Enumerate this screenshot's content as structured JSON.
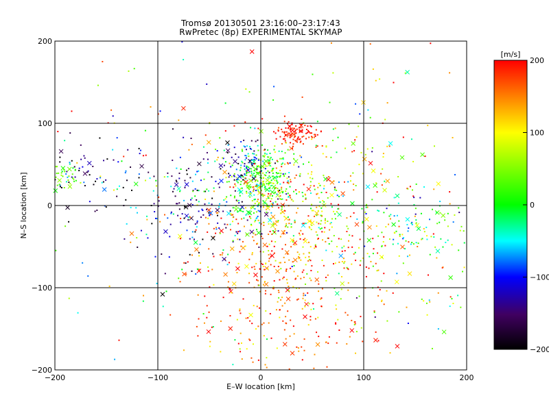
{
  "chart_data": {
    "type": "scatter",
    "title": "Tromsø 20130501 23:16:00–23:17:43",
    "subtitle": "RwPretec (8p) EXPERIMENTAL SKYMAP",
    "xlabel": "E–W location [km]",
    "ylabel": "N–S location [km]",
    "xlim": [
      -200,
      200
    ],
    "ylim": [
      -200,
      200
    ],
    "xticks": [
      -200,
      -100,
      0,
      100,
      200
    ],
    "yticks": [
      -200,
      -100,
      0,
      100,
      200
    ],
    "xtick_labels": [
      "−200",
      "−100",
      "0",
      "100",
      "200"
    ],
    "ytick_labels": [
      "−200",
      "−100",
      "0",
      "100",
      "200"
    ],
    "grid": true,
    "colorbar": {
      "label": "[m/s]",
      "range": [
        -200,
        200
      ],
      "ticks": [
        200,
        100,
        0,
        -100,
        -200
      ],
      "tick_labels": [
        "200",
        "100",
        "0",
        "−100",
        "−200"
      ]
    },
    "markers": [
      "dot",
      "x"
    ],
    "clusters": [
      {
        "cx": 35,
        "cy": 88,
        "sx": 12,
        "sy": 7,
        "n": 110,
        "v": 190,
        "vs": 15
      },
      {
        "cx": 0,
        "cy": 30,
        "sx": 14,
        "sy": 22,
        "n": 230,
        "v": 15,
        "vs": 40
      },
      {
        "cx": -15,
        "cy": 55,
        "sx": 10,
        "sy": 15,
        "n": 60,
        "v": -90,
        "vs": 40
      },
      {
        "cx": 20,
        "cy": -70,
        "sx": 45,
        "sy": 60,
        "n": 480,
        "v": 160,
        "vs": 45
      },
      {
        "cx": -55,
        "cy": 10,
        "sx": 40,
        "sy": 35,
        "n": 230,
        "v": -120,
        "vs": 60
      },
      {
        "cx": -170,
        "cy": 40,
        "sx": 22,
        "sy": 25,
        "n": 65,
        "v": -150,
        "vs": 60
      },
      {
        "cx": -190,
        "cy": 35,
        "sx": 10,
        "sy": 8,
        "n": 35,
        "v": 40,
        "vs": 25
      },
      {
        "cx": 100,
        "cy": -40,
        "sx": 55,
        "sy": 70,
        "n": 220,
        "v": 90,
        "vs": 80
      },
      {
        "cx": 150,
        "cy": -25,
        "sx": 25,
        "sy": 20,
        "n": 70,
        "v": -10,
        "vs": 50
      },
      {
        "cx": 30,
        "cy": 5,
        "sx": 35,
        "sy": 30,
        "n": 200,
        "v": 60,
        "vs": 70
      },
      {
        "cx": 0,
        "cy": 0,
        "sx": 130,
        "sy": 120,
        "n": 280,
        "v": 60,
        "vs": 110
      }
    ]
  }
}
